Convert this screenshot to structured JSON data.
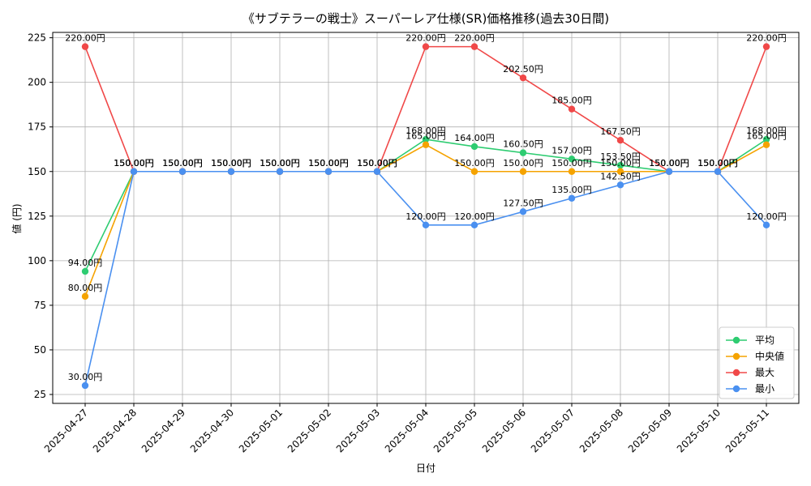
{
  "chart_data": {
    "type": "line",
    "title": "《サブテラーの戦士》スーパーレア仕様(SR)価格推移(過去30日間)",
    "xlabel": "日付",
    "ylabel": "値 (円)",
    "ylim": [
      20,
      228
    ],
    "yticks": [
      25,
      50,
      75,
      100,
      125,
      150,
      175,
      200,
      225
    ],
    "grid": true,
    "legend_position": "bottom-right",
    "categories": [
      "2025-04-27",
      "2025-04-28",
      "2025-04-29",
      "2025-04-30",
      "2025-05-01",
      "2025-05-02",
      "2025-05-03",
      "2025-05-04",
      "2025-05-05",
      "2025-05-06",
      "2025-05-07",
      "2025-05-08",
      "2025-05-09",
      "2025-05-10",
      "2025-05-11"
    ],
    "series": [
      {
        "name": "平均",
        "color": "#2ecc71",
        "values": [
          94,
          150,
          150,
          150,
          150,
          150,
          150,
          168,
          164,
          160.5,
          157,
          153.5,
          150,
          150,
          168
        ],
        "labels": [
          "94.00円",
          "150.00円",
          "150.00円",
          "150.00円",
          "150.00円",
          "150.00円",
          "150.00円",
          "168.00円",
          "164.00円",
          "160.50円",
          "157.00円",
          "153.50円",
          "150.00円",
          "150.00円",
          "168.00円"
        ]
      },
      {
        "name": "中央値",
        "color": "#f5a300",
        "values": [
          80,
          150,
          150,
          150,
          150,
          150,
          150,
          165,
          150,
          150,
          150,
          150,
          150,
          150,
          165
        ],
        "labels": [
          "80.00円",
          "150.00円",
          "150.00円",
          "150.00円",
          "150.00円",
          "150.00円",
          "150.00円",
          "165.00円",
          "150.00円",
          "150.00円",
          "150.00円",
          "150.00円",
          "150.00円",
          "150.00円",
          "165.00円"
        ]
      },
      {
        "name": "最大",
        "color": "#f04848",
        "values": [
          220,
          150,
          150,
          150,
          150,
          150,
          150,
          220,
          220,
          202.5,
          185,
          167.5,
          150,
          150,
          220
        ],
        "labels": [
          "220.00円",
          "150.00円",
          "150.00円",
          "150.00円",
          "150.00円",
          "150.00円",
          "150.00円",
          "220.00円",
          "220.00円",
          "202.50円",
          "185.00円",
          "167.50円",
          "150.00円",
          "150.00円",
          "220.00円"
        ]
      },
      {
        "name": "最小",
        "color": "#4a90f0",
        "values": [
          30,
          150,
          150,
          150,
          150,
          150,
          150,
          120,
          120,
          127.5,
          135,
          142.5,
          150,
          150,
          120
        ],
        "labels": [
          "30.00円",
          "150.00円",
          "150.00円",
          "150.00円",
          "150.00円",
          "150.00円",
          "150.00円",
          "120.00円",
          "120.00円",
          "127.50円",
          "135.00円",
          "142.50円",
          "150.00円",
          "150.00円",
          "120.00円"
        ]
      }
    ]
  }
}
